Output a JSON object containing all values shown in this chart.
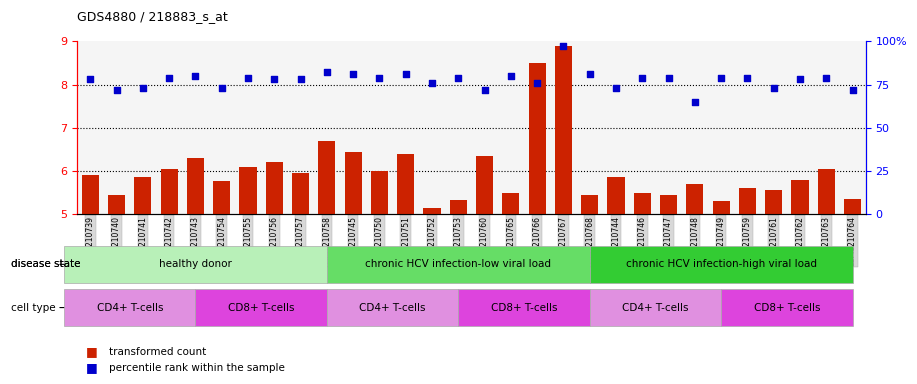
{
  "title": "GDS4880 / 218883_s_at",
  "samples": [
    "GSM1210739",
    "GSM1210740",
    "GSM1210741",
    "GSM1210742",
    "GSM1210743",
    "GSM1210754",
    "GSM1210755",
    "GSM1210756",
    "GSM1210757",
    "GSM1210758",
    "GSM1210745",
    "GSM1210750",
    "GSM1210751",
    "GSM1210752",
    "GSM1210753",
    "GSM1210760",
    "GSM1210765",
    "GSM1210766",
    "GSM1210767",
    "GSM1210768",
    "GSM1210744",
    "GSM1210746",
    "GSM1210747",
    "GSM1210748",
    "GSM1210749",
    "GSM1210759",
    "GSM1210761",
    "GSM1210762",
    "GSM1210763",
    "GSM1210764"
  ],
  "bar_values": [
    5.9,
    5.45,
    5.85,
    6.05,
    6.3,
    5.78,
    6.1,
    6.2,
    5.95,
    6.7,
    6.45,
    6.0,
    6.4,
    5.15,
    5.32,
    6.35,
    5.5,
    8.5,
    8.9,
    5.45,
    5.85,
    5.5,
    5.45,
    5.7,
    5.3,
    5.6,
    5.55,
    5.8,
    6.05,
    5.35
  ],
  "percentile_values": [
    78,
    72,
    73,
    79,
    80,
    73,
    79,
    78,
    78,
    82,
    81,
    79,
    81,
    76,
    79,
    72,
    80,
    76,
    97,
    81,
    73,
    79,
    79,
    65,
    79,
    79,
    73,
    78,
    79,
    72
  ],
  "bar_color": "#cc2200",
  "dot_color": "#0000cc",
  "ylim_left": [
    5,
    9
  ],
  "ylim_right": [
    0,
    100
  ],
  "yticks_left": [
    5,
    6,
    7,
    8,
    9
  ],
  "yticks_right": [
    0,
    25,
    50,
    75,
    100
  ],
  "ytick_labels_right": [
    "0",
    "25",
    "50",
    "75",
    "100%"
  ],
  "disease_groups": [
    {
      "label": "healthy donor",
      "start": 0,
      "end": 9,
      "color": "#b8f0b8"
    },
    {
      "label": "chronic HCV infection-low viral load",
      "start": 10,
      "end": 19,
      "color": "#66dd66"
    },
    {
      "label": "chronic HCV infection-high viral load",
      "start": 20,
      "end": 29,
      "color": "#33cc33"
    }
  ],
  "cell_groups": [
    {
      "label": "CD4+ T-cells",
      "start": 0,
      "end": 4,
      "color": "#e090e0"
    },
    {
      "label": "CD8+ T-cells",
      "start": 5,
      "end": 9,
      "color": "#dd44dd"
    },
    {
      "label": "CD4+ T-cells",
      "start": 10,
      "end": 14,
      "color": "#e090e0"
    },
    {
      "label": "CD8+ T-cells",
      "start": 15,
      "end": 19,
      "color": "#dd44dd"
    },
    {
      "label": "CD4+ T-cells",
      "start": 20,
      "end": 24,
      "color": "#e090e0"
    },
    {
      "label": "CD8+ T-cells",
      "start": 25,
      "end": 29,
      "color": "#dd44dd"
    }
  ],
  "disease_row_label": "disease state",
  "cell_row_label": "cell type",
  "legend_bar_label": "transformed count",
  "legend_dot_label": "percentile rank within the sample",
  "tick_bg_color": "#d8d8d8",
  "plot_bg_color": "#f5f5f5"
}
